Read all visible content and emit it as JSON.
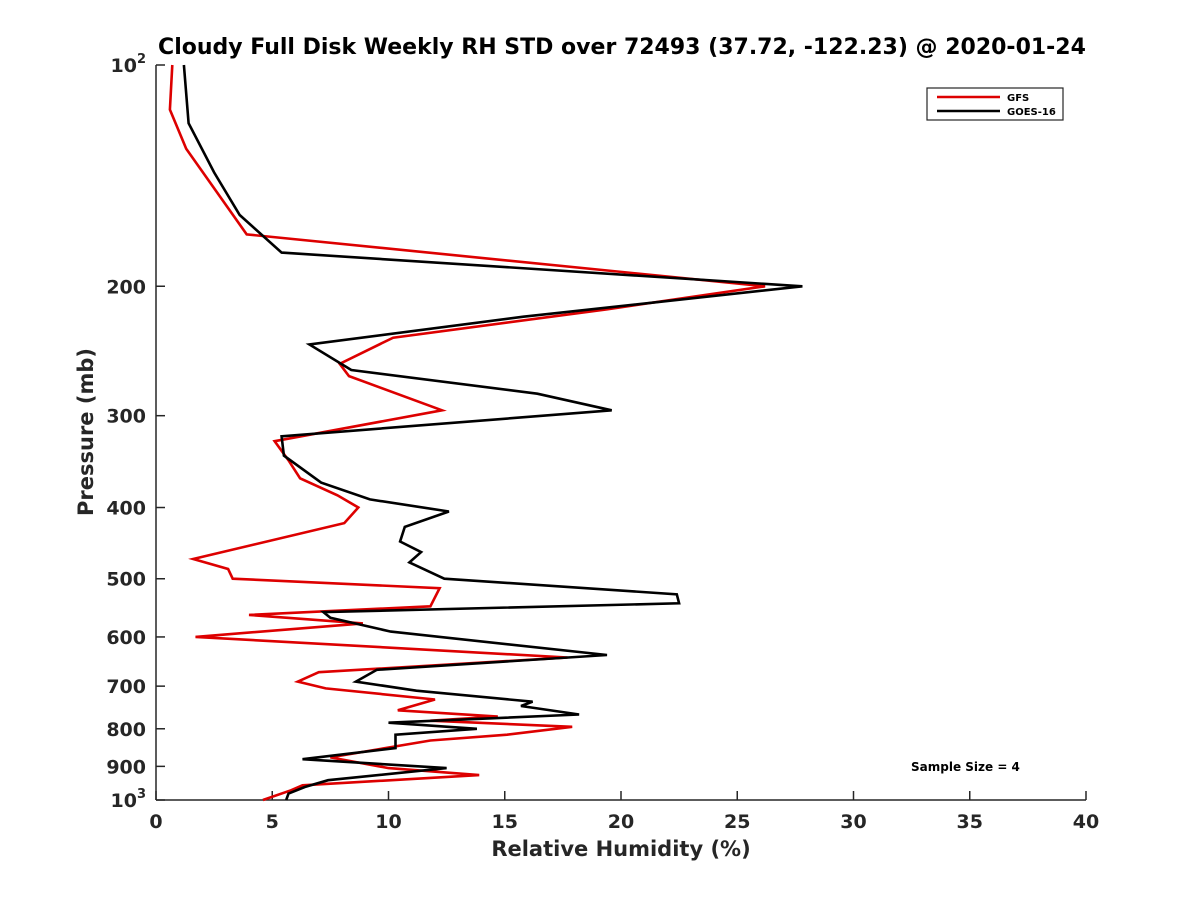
{
  "chart_data": {
    "type": "line",
    "title": "Cloudy Full Disk Weekly RH STD over 72493 (37.72, -122.23) @ 2020-01-24",
    "xlabel": "Relative Humidity (%)",
    "ylabel": "Pressure (mb)",
    "xlim": [
      0,
      40
    ],
    "ylim": [
      100,
      1000
    ],
    "y_scale": "log",
    "y_reversed": true,
    "x_ticks": [
      "0",
      "5",
      "10",
      "15",
      "20",
      "25",
      "30",
      "35",
      "40"
    ],
    "y_ticks": [
      {
        "value": 100,
        "base": "10",
        "exp": "2"
      },
      {
        "value": 200,
        "label": "200"
      },
      {
        "value": 300,
        "label": "300"
      },
      {
        "value": 400,
        "label": "400"
      },
      {
        "value": 500,
        "label": "500"
      },
      {
        "value": 600,
        "label": "600"
      },
      {
        "value": 700,
        "label": "700"
      },
      {
        "value": 800,
        "label": "800"
      },
      {
        "value": 900,
        "label": "900"
      },
      {
        "value": 1000,
        "base": "10",
        "exp": "3"
      }
    ],
    "legend_position": "top-right",
    "grid": false,
    "annotation": "Sample Size = 4",
    "series": [
      {
        "name": "GFS",
        "color": "#dd0000",
        "points": [
          [
            0.7,
            100
          ],
          [
            0.6,
            115
          ],
          [
            1.3,
            130
          ],
          [
            3.9,
            170
          ],
          [
            26.2,
            200
          ],
          [
            19.4,
            215
          ],
          [
            10.2,
            235
          ],
          [
            7.9,
            255
          ],
          [
            8.3,
            265
          ],
          [
            12.3,
            295
          ],
          [
            5.1,
            325
          ],
          [
            5.7,
            345
          ],
          [
            6.2,
            365
          ],
          [
            7.8,
            385
          ],
          [
            8.7,
            400
          ],
          [
            8.1,
            420
          ],
          [
            1.6,
            470
          ],
          [
            3.1,
            485
          ],
          [
            3.3,
            500
          ],
          [
            12.2,
            515
          ],
          [
            11.8,
            545
          ],
          [
            4.0,
            560
          ],
          [
            8.9,
            575
          ],
          [
            1.7,
            600
          ],
          [
            17.7,
            640
          ],
          [
            7.0,
            670
          ],
          [
            6.1,
            690
          ],
          [
            7.3,
            705
          ],
          [
            12.0,
            730
          ],
          [
            10.4,
            755
          ],
          [
            14.7,
            770
          ],
          [
            11.8,
            780
          ],
          [
            17.9,
            795
          ],
          [
            15.1,
            815
          ],
          [
            11.8,
            830
          ],
          [
            7.5,
            875
          ],
          [
            10.0,
            905
          ],
          [
            13.9,
            925
          ],
          [
            6.3,
            955
          ],
          [
            5.8,
            970
          ],
          [
            4.6,
            1000
          ]
        ]
      },
      {
        "name": "GOES-16",
        "color": "#000000",
        "points": [
          [
            1.2,
            100
          ],
          [
            1.4,
            120
          ],
          [
            2.5,
            140
          ],
          [
            3.6,
            160
          ],
          [
            5.4,
            180
          ],
          [
            27.8,
            200
          ],
          [
            15.8,
            220
          ],
          [
            6.6,
            240
          ],
          [
            8.4,
            260
          ],
          [
            16.4,
            280
          ],
          [
            19.6,
            295
          ],
          [
            5.4,
            320
          ],
          [
            5.5,
            340
          ],
          [
            7.1,
            370
          ],
          [
            9.2,
            390
          ],
          [
            12.6,
            405
          ],
          [
            10.7,
            425
          ],
          [
            10.5,
            445
          ],
          [
            11.4,
            460
          ],
          [
            10.9,
            475
          ],
          [
            12.4,
            500
          ],
          [
            22.4,
            525
          ],
          [
            22.5,
            540
          ],
          [
            7.2,
            555
          ],
          [
            7.5,
            565
          ],
          [
            10.1,
            590
          ],
          [
            19.4,
            635
          ],
          [
            9.5,
            665
          ],
          [
            8.6,
            690
          ],
          [
            11.2,
            710
          ],
          [
            16.2,
            735
          ],
          [
            15.7,
            745
          ],
          [
            18.2,
            765
          ],
          [
            10.0,
            785
          ],
          [
            13.8,
            800
          ],
          [
            10.3,
            815
          ],
          [
            10.3,
            850
          ],
          [
            6.3,
            880
          ],
          [
            12.5,
            905
          ],
          [
            7.4,
            940
          ],
          [
            6.4,
            960
          ],
          [
            5.7,
            980
          ],
          [
            5.6,
            1000
          ]
        ]
      }
    ]
  }
}
